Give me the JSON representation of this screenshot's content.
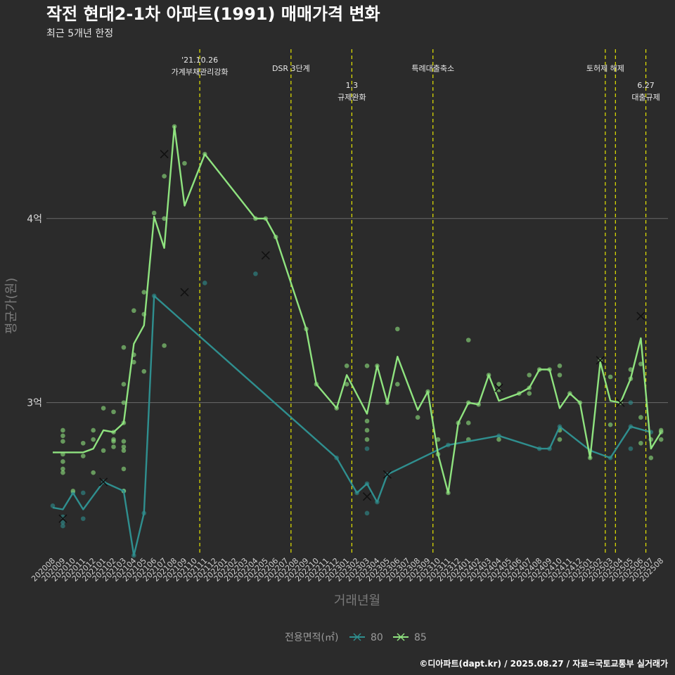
{
  "chart_data": {
    "type": "line",
    "title": "작전 현대2-1차 아파트(1991) 매매가격 변화",
    "subtitle": "최근 5개년 한정",
    "xlabel": "거래년월",
    "ylabel": "평균가(원)",
    "ylim": [
      2.17,
      4.87
    ],
    "yticks": [
      {
        "value": 3,
        "label": "3억"
      },
      {
        "value": 4,
        "label": "4억"
      }
    ],
    "grid": "horizontal",
    "legend": {
      "title": "전용면적(㎡)",
      "position": "bottom",
      "entries": [
        "80",
        "85"
      ]
    },
    "categories": [
      "202008",
      "202009",
      "202010",
      "202011",
      "202012",
      "202101",
      "202102",
      "202103",
      "202104",
      "202105",
      "202106",
      "202107",
      "202108",
      "202109",
      "202110",
      "202111",
      "202112",
      "202201",
      "202202",
      "202203",
      "202204",
      "202205",
      "202206",
      "202207",
      "202208",
      "202209",
      "202210",
      "202211",
      "202212",
      "202301",
      "202302",
      "202303",
      "202304",
      "202305",
      "202306",
      "202307",
      "202308",
      "202309",
      "202310",
      "202311",
      "202312",
      "202401",
      "202402",
      "202403",
      "202404",
      "202405",
      "202406",
      "202407",
      "202408",
      "202409",
      "202410",
      "202411",
      "202412",
      "202501",
      "202502",
      "202503",
      "202504",
      "202505",
      "202506",
      "202507",
      "202508"
    ],
    "series": [
      {
        "name": "80",
        "color": "#2f8f8f",
        "line": [
          [
            "202008",
            2.43
          ],
          [
            "202009",
            2.42
          ],
          [
            "202010",
            2.51
          ],
          [
            "202011",
            2.42
          ],
          [
            "202101",
            2.57
          ],
          [
            "202103",
            2.52
          ],
          [
            "202104",
            2.17
          ],
          [
            "202105",
            2.4
          ],
          [
            "202106",
            3.58
          ],
          [
            "202212",
            2.7
          ],
          [
            "202302",
            2.51
          ],
          [
            "202303",
            2.56
          ],
          [
            "202304",
            2.46
          ],
          [
            "202305",
            2.61
          ],
          [
            "202311",
            2.77
          ],
          [
            "202404",
            2.82
          ],
          [
            "202408",
            2.75
          ],
          [
            "202409",
            2.75
          ],
          [
            "202410",
            2.87
          ],
          [
            "202501",
            2.74
          ],
          [
            "202503",
            2.7
          ],
          [
            "202505",
            2.87
          ],
          [
            "202507",
            2.84
          ]
        ],
        "points": [
          [
            "202008",
            2.44
          ],
          [
            "202009",
            2.35
          ],
          [
            "202009",
            2.33
          ],
          [
            "202009",
            2.38
          ],
          [
            "202010",
            2.51
          ],
          [
            "202011",
            2.51
          ],
          [
            "202011",
            2.37
          ],
          [
            "202101",
            2.57
          ],
          [
            "202103",
            2.52
          ],
          [
            "202104",
            2.17
          ],
          [
            "202105",
            2.4
          ],
          [
            "202106",
            3.58
          ],
          [
            "202111",
            3.65
          ],
          [
            "202204",
            3.7
          ],
          [
            "202212",
            2.7
          ],
          [
            "202302",
            2.51
          ],
          [
            "202303",
            2.56
          ],
          [
            "202303",
            2.75
          ],
          [
            "202303",
            2.4
          ],
          [
            "202304",
            2.46
          ],
          [
            "202305",
            2.61
          ],
          [
            "202311",
            2.77
          ],
          [
            "202404",
            2.82
          ],
          [
            "202408",
            2.75
          ],
          [
            "202409",
            2.75
          ],
          [
            "202410",
            2.87
          ],
          [
            "202501",
            2.74
          ],
          [
            "202503",
            2.7
          ],
          [
            "202505",
            2.75
          ],
          [
            "202505",
            3.0
          ],
          [
            "202505",
            2.87
          ],
          [
            "202507",
            2.84
          ]
        ],
        "cancelled": [
          [
            "202009",
            2.37
          ],
          [
            "202101",
            2.57
          ],
          [
            "202205",
            3.8
          ],
          [
            "202303",
            2.49
          ],
          [
            "202305",
            2.61
          ]
        ]
      },
      {
        "name": "85",
        "color": "#8fe37f",
        "line": [
          [
            "202008",
            2.73
          ],
          [
            "202009",
            2.73
          ],
          [
            "202010",
            2.73
          ],
          [
            "202011",
            2.73
          ],
          [
            "202012",
            2.75
          ],
          [
            "202101",
            2.85
          ],
          [
            "202102",
            2.84
          ],
          [
            "202103",
            2.89
          ],
          [
            "202104",
            3.32
          ],
          [
            "202105",
            3.42
          ],
          [
            "202106",
            4.01
          ],
          [
            "202107",
            3.84
          ],
          [
            "202108",
            4.5
          ],
          [
            "202109",
            4.07
          ],
          [
            "202111",
            4.35
          ],
          [
            "202204",
            4.0
          ],
          [
            "202205",
            4.0
          ],
          [
            "202206",
            3.9
          ],
          [
            "202209",
            3.4
          ],
          [
            "202210",
            3.1
          ],
          [
            "202212",
            2.97
          ],
          [
            "202301",
            3.15
          ],
          [
            "202303",
            2.94
          ],
          [
            "202304",
            3.2
          ],
          [
            "202305",
            3.0
          ],
          [
            "202306",
            3.25
          ],
          [
            "202308",
            2.96
          ],
          [
            "202309",
            3.06
          ],
          [
            "202310",
            2.72
          ],
          [
            "202311",
            2.51
          ],
          [
            "202312",
            2.89
          ],
          [
            "202401",
            3.0
          ],
          [
            "202402",
            2.99
          ],
          [
            "202403",
            3.15
          ],
          [
            "202404",
            3.01
          ],
          [
            "202406",
            3.05
          ],
          [
            "202407",
            3.08
          ],
          [
            "202408",
            3.18
          ],
          [
            "202409",
            3.18
          ],
          [
            "202410",
            2.97
          ],
          [
            "202411",
            3.05
          ],
          [
            "202412",
            3.0
          ],
          [
            "202501",
            2.7
          ],
          [
            "202502",
            3.22
          ],
          [
            "202503",
            3.01
          ],
          [
            "202504",
            3.0
          ],
          [
            "202505",
            3.13
          ],
          [
            "202506",
            3.35
          ],
          [
            "202507",
            2.75
          ],
          [
            "202508",
            2.84
          ]
        ],
        "points": [
          [
            "202009",
            2.85
          ],
          [
            "202009",
            2.82
          ],
          [
            "202009",
            2.79
          ],
          [
            "202009",
            2.72
          ],
          [
            "202009",
            2.68
          ],
          [
            "202009",
            2.64
          ],
          [
            "202009",
            2.62
          ],
          [
            "202010",
            2.52
          ],
          [
            "202011",
            2.71
          ],
          [
            "202011",
            2.78
          ],
          [
            "202012",
            2.85
          ],
          [
            "202012",
            2.8
          ],
          [
            "202012",
            2.62
          ],
          [
            "202101",
            2.97
          ],
          [
            "202101",
            2.74
          ],
          [
            "202102",
            2.95
          ],
          [
            "202102",
            2.84
          ],
          [
            "202102",
            2.8
          ],
          [
            "202102",
            2.79
          ],
          [
            "202102",
            2.76
          ],
          [
            "202103",
            3.3
          ],
          [
            "202103",
            3.1
          ],
          [
            "202103",
            3.0
          ],
          [
            "202103",
            2.89
          ],
          [
            "202103",
            2.79
          ],
          [
            "202103",
            2.76
          ],
          [
            "202103",
            2.74
          ],
          [
            "202103",
            2.64
          ],
          [
            "202103",
            2.52
          ],
          [
            "202104",
            3.5
          ],
          [
            "202104",
            3.26
          ],
          [
            "202104",
            3.22
          ],
          [
            "202105",
            3.6
          ],
          [
            "202105",
            3.48
          ],
          [
            "202105",
            3.17
          ],
          [
            "202106",
            4.03
          ],
          [
            "202107",
            4.23
          ],
          [
            "202107",
            4.0
          ],
          [
            "202107",
            3.31
          ],
          [
            "202108",
            4.5
          ],
          [
            "202109",
            4.3
          ],
          [
            "202111",
            4.35
          ],
          [
            "202204",
            4.0
          ],
          [
            "202205",
            4.0
          ],
          [
            "202206",
            3.9
          ],
          [
            "202209",
            3.4
          ],
          [
            "202210",
            3.1
          ],
          [
            "202212",
            2.97
          ],
          [
            "202301",
            3.2
          ],
          [
            "202301",
            3.1
          ],
          [
            "202303",
            3.2
          ],
          [
            "202303",
            2.9
          ],
          [
            "202303",
            2.85
          ],
          [
            "202303",
            2.8
          ],
          [
            "202304",
            3.2
          ],
          [
            "202305",
            3.0
          ],
          [
            "202306",
            3.4
          ],
          [
            "202306",
            3.1
          ],
          [
            "202308",
            2.92
          ],
          [
            "202309",
            3.06
          ],
          [
            "202310",
            2.8
          ],
          [
            "202310",
            2.72
          ],
          [
            "202311",
            2.51
          ],
          [
            "202312",
            2.89
          ],
          [
            "202401",
            3.34
          ],
          [
            "202401",
            3.0
          ],
          [
            "202401",
            2.89
          ],
          [
            "202401",
            2.8
          ],
          [
            "202402",
            2.99
          ],
          [
            "202403",
            3.15
          ],
          [
            "202404",
            3.1
          ],
          [
            "202404",
            3.07
          ],
          [
            "202404",
            2.8
          ],
          [
            "202406",
            3.05
          ],
          [
            "202407",
            3.15
          ],
          [
            "202407",
            3.08
          ],
          [
            "202407",
            3.05
          ],
          [
            "202408",
            3.18
          ],
          [
            "202409",
            3.18
          ],
          [
            "202410",
            3.2
          ],
          [
            "202410",
            3.15
          ],
          [
            "202410",
            2.85
          ],
          [
            "202410",
            2.8
          ],
          [
            "202411",
            3.05
          ],
          [
            "202412",
            3.0
          ],
          [
            "202501",
            2.7
          ],
          [
            "202502",
            3.23
          ],
          [
            "202503",
            3.14
          ],
          [
            "202503",
            2.88
          ],
          [
            "202504",
            3.0
          ],
          [
            "202505",
            3.18
          ],
          [
            "202505",
            3.13
          ],
          [
            "202506",
            3.21
          ],
          [
            "202506",
            2.92
          ],
          [
            "202506",
            2.78
          ],
          [
            "202507",
            2.8
          ],
          [
            "202507",
            2.7
          ],
          [
            "202508",
            2.85
          ],
          [
            "202508",
            2.84
          ],
          [
            "202508",
            2.8
          ]
        ],
        "cancelled": [
          [
            "202107",
            4.35
          ],
          [
            "202109",
            3.6
          ],
          [
            "202404",
            3.08
          ],
          [
            "202502",
            3.23
          ],
          [
            "202504",
            3.0
          ],
          [
            "202506",
            3.47
          ]
        ]
      }
    ],
    "events": [
      {
        "after": "202110",
        "lines": [
          "'21.10.26",
          "가계부채관리강화"
        ]
      },
      {
        "after": "202207",
        "lines": [
          "DSR 3단계"
        ]
      },
      {
        "after": "202301",
        "lines": [
          "1.3",
          "규제완화"
        ]
      },
      {
        "after": "202309",
        "lines": [
          "특례대출축소"
        ]
      },
      {
        "after": "202502",
        "lines": [
          "토허제 해제"
        ]
      },
      {
        "after": "202503",
        "lines": []
      },
      {
        "after": "202506",
        "lines": [
          "6.27",
          "대출규제"
        ]
      }
    ]
  },
  "credit": "©디아파트(dapt.kr) / 2025.08.27 / 자료=국토교통부 실거래가",
  "colors": {
    "background": "#2b2b2b",
    "event_line": "#e6e600",
    "grid": "#6a6a6a"
  }
}
